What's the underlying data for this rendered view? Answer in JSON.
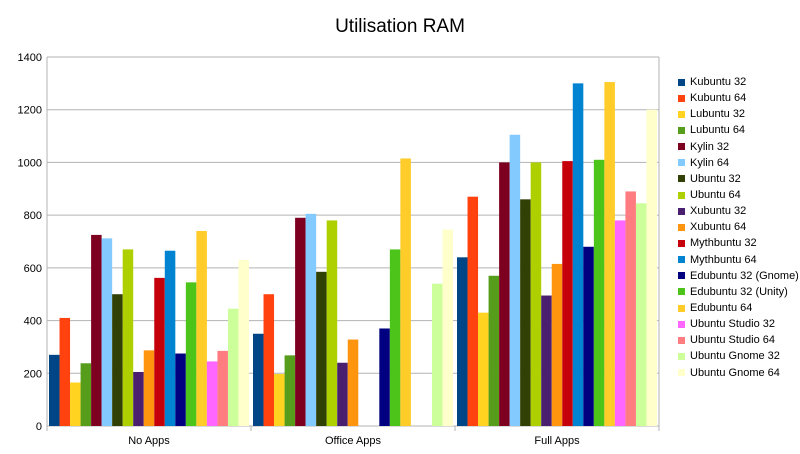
{
  "chart_data": {
    "type": "bar",
    "title": "Utilisation RAM",
    "xlabel": "",
    "ylabel": "",
    "ylim": [
      0,
      1400
    ],
    "yticks": [
      0,
      200,
      400,
      600,
      800,
      1000,
      1200,
      1400
    ],
    "grid": true,
    "legend_position": "right",
    "categories": [
      "No Apps",
      "Office Apps",
      "Full Apps"
    ],
    "series": [
      {
        "name": "Kubuntu 32",
        "color": "#004586",
        "values": [
          270,
          350,
          640
        ]
      },
      {
        "name": "Kubuntu 64",
        "color": "#ff420e",
        "values": [
          410,
          500,
          870
        ]
      },
      {
        "name": "Lubuntu 32",
        "color": "#ffd320",
        "values": [
          165,
          197,
          430
        ]
      },
      {
        "name": "Lubuntu 64",
        "color": "#579d1c",
        "values": [
          238,
          268,
          570
        ]
      },
      {
        "name": "Kylin 32",
        "color": "#7e0021",
        "values": [
          725,
          790,
          1000
        ]
      },
      {
        "name": "Kylin 64",
        "color": "#83caff",
        "values": [
          712,
          805,
          1105
        ]
      },
      {
        "name": "Ubuntu 32",
        "color": "#314004",
        "values": [
          500,
          585,
          860
        ]
      },
      {
        "name": "Ubuntu 64",
        "color": "#aecf00",
        "values": [
          670,
          780,
          1000
        ]
      },
      {
        "name": "Xubuntu 32",
        "color": "#4b1f6f",
        "values": [
          205,
          240,
          495
        ]
      },
      {
        "name": "Xubuntu 64",
        "color": "#ff950e",
        "values": [
          287,
          328,
          615
        ]
      },
      {
        "name": "Mythbuntu 32",
        "color": "#c5000b",
        "values": [
          562,
          null,
          1005
        ]
      },
      {
        "name": "Mythbuntu 64",
        "color": "#0084d1",
        "values": [
          665,
          null,
          1300
        ]
      },
      {
        "name": "Edubuntu 32 (Gnome)",
        "color": "#000080",
        "values": [
          275,
          370,
          680
        ]
      },
      {
        "name": "Edubuntu 32 (Unity)",
        "color": "#4dc41a",
        "values": [
          545,
          670,
          1010
        ]
      },
      {
        "name": "Edubuntu 64",
        "color": "#ffcc2a",
        "values": [
          740,
          1015,
          1305
        ]
      },
      {
        "name": "Ubuntu Studio 32",
        "color": "#ff66ff",
        "values": [
          245,
          null,
          780
        ]
      },
      {
        "name": "Ubuntu Studio 64",
        "color": "#ff7c80",
        "values": [
          285,
          null,
          890
        ]
      },
      {
        "name": "Ubuntu Gnome 32",
        "color": "#ccff99",
        "values": [
          445,
          540,
          845
        ]
      },
      {
        "name": "Ubuntu Gnome 64",
        "color": "#ffffcc",
        "values": [
          630,
          745,
          1200
        ]
      }
    ]
  }
}
